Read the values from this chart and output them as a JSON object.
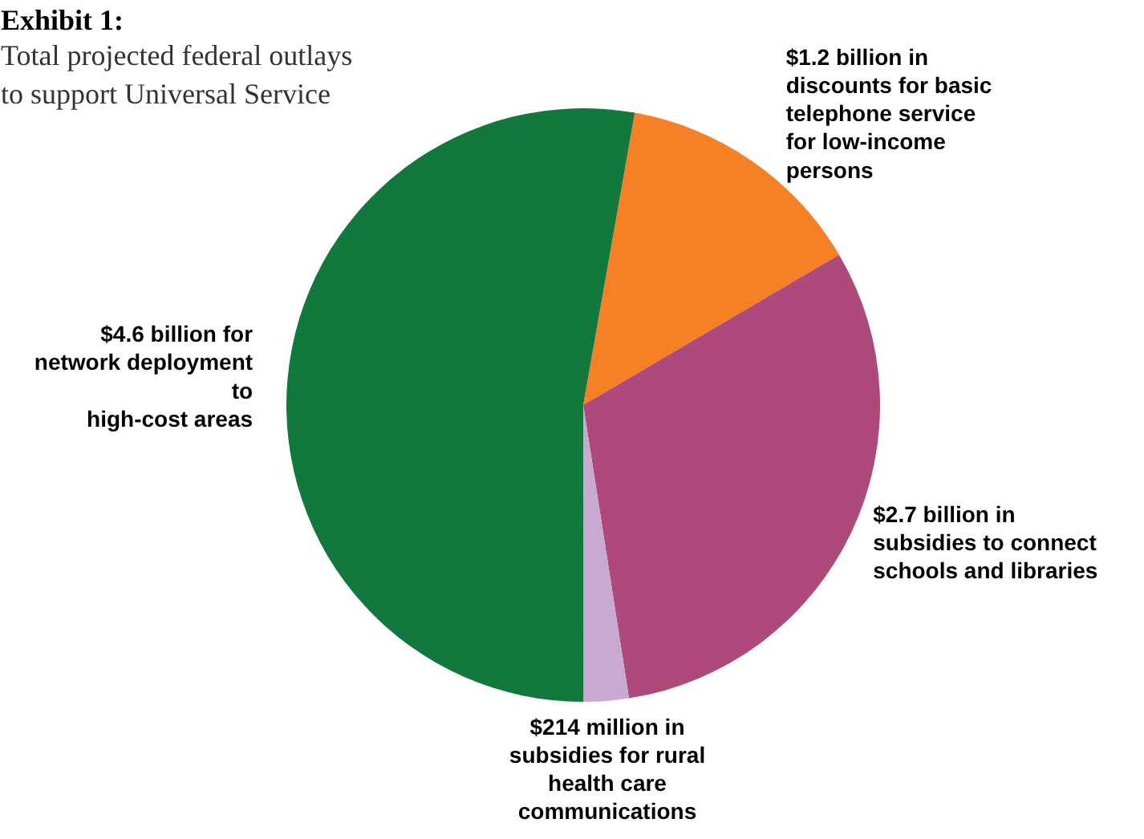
{
  "chart_data": {
    "type": "pie",
    "title": "Exhibit 1:",
    "subtitle": "Total projected federal outlays to support Universal Service",
    "categories": [
      "$1.2 billion in\ndiscounts for basic\ntelephone service\nfor low-income\npersons",
      "$2.7 billion in\nsubsidies to connect\nschools and libraries",
      "$214 million in\nsubsidies for rural\nhealth care\ncommunications",
      "$4.6 billion for\nnetwork deployment\nto\nhigh-cost areas"
    ],
    "values": [
      1.2,
      2.7,
      0.214,
      4.6
    ],
    "colors": [
      "#f58025",
      "#ad4a7b",
      "#c8a9d2",
      "#12783d"
    ]
  }
}
